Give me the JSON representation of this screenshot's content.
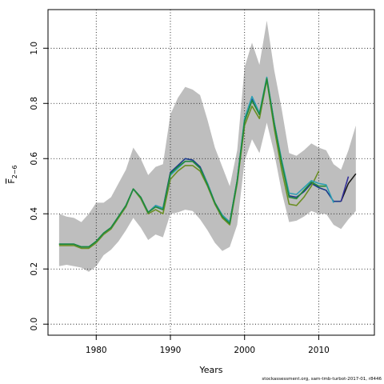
{
  "chart_data": {
    "type": "line",
    "xlabel": "Years",
    "ylabel_main": "F",
    "ylabel_sub": "2−6",
    "xlim": [
      1973.5,
      2017.5
    ],
    "ylim": [
      -0.04,
      1.14
    ],
    "xticks": [
      1980,
      1990,
      2000,
      2010
    ],
    "xtick_labels": [
      "1980",
      "1990",
      "2000",
      "2010"
    ],
    "yticks": [
      0.0,
      0.2,
      0.4,
      0.6,
      0.8,
      1.0
    ],
    "ytick_labels": [
      "0.0",
      "0.2",
      "0.4",
      "0.6",
      "0.8",
      "1.0"
    ],
    "grid": true,
    "band": {
      "color": "#bebebe",
      "x": [
        1975,
        1976,
        1977,
        1978,
        1979,
        1980,
        1981,
        1982,
        1983,
        1984,
        1985,
        1986,
        1987,
        1988,
        1989,
        1990,
        1991,
        1992,
        1993,
        1994,
        1995,
        1996,
        1997,
        1998,
        1999,
        2000,
        2001,
        2002,
        2003,
        2004,
        2005,
        2006,
        2007,
        2008,
        2009,
        2010,
        2011,
        2012,
        2013,
        2014,
        2015
      ],
      "upper": [
        0.4,
        0.39,
        0.385,
        0.37,
        0.4,
        0.44,
        0.44,
        0.46,
        0.51,
        0.56,
        0.64,
        0.6,
        0.54,
        0.57,
        0.58,
        0.76,
        0.82,
        0.86,
        0.85,
        0.83,
        0.74,
        0.64,
        0.57,
        0.5,
        0.63,
        0.93,
        1.02,
        0.94,
        1.1,
        0.92,
        0.78,
        0.62,
        0.61,
        0.63,
        0.655,
        0.64,
        0.63,
        0.58,
        0.56,
        0.63,
        0.72
      ],
      "lower": [
        0.21,
        0.215,
        0.21,
        0.205,
        0.19,
        0.21,
        0.25,
        0.27,
        0.3,
        0.34,
        0.385,
        0.35,
        0.305,
        0.325,
        0.315,
        0.4,
        0.405,
        0.415,
        0.41,
        0.38,
        0.34,
        0.295,
        0.265,
        0.28,
        0.36,
        0.59,
        0.67,
        0.62,
        0.73,
        0.62,
        0.48,
        0.37,
        0.375,
        0.39,
        0.41,
        0.4,
        0.4,
        0.36,
        0.345,
        0.38,
        0.41
      ]
    },
    "series": [
      {
        "color": "#1a3b8a",
        "width": 1.6,
        "x": [
          1975,
          1976,
          1977,
          1978,
          1979,
          1980,
          1981,
          1982,
          1983,
          1984,
          1985,
          1986,
          1987,
          1988,
          1989,
          1990,
          1991,
          1992,
          1993,
          1994,
          1995,
          1996,
          1997,
          1998,
          1999,
          2000,
          2001,
          2002,
          2003,
          2004,
          2005,
          2006,
          2007,
          2008,
          2009,
          2010,
          2011,
          2012,
          2013
        ],
        "values": [
          0.29,
          0.29,
          0.29,
          0.28,
          0.28,
          0.3,
          0.33,
          0.35,
          0.39,
          0.43,
          0.49,
          0.46,
          0.405,
          0.43,
          0.42,
          0.55,
          0.575,
          0.6,
          0.595,
          0.57,
          0.51,
          0.44,
          0.395,
          0.37,
          0.52,
          0.74,
          0.815,
          0.76,
          0.89,
          0.73,
          0.59,
          0.465,
          0.46,
          0.48,
          0.51,
          0.495,
          0.485,
          0.445,
          0.445
        ]
      },
      {
        "color": "#6b8e23",
        "width": 1.6,
        "x": [
          1975,
          1976,
          1977,
          1978,
          1979,
          1980,
          1981,
          1982,
          1983,
          1984,
          1985,
          1986,
          1987,
          1988,
          1989,
          1990,
          1991,
          1992,
          1993,
          1994,
          1995,
          1996,
          1997,
          1998,
          1999,
          2000,
          2001,
          2002,
          2003,
          2004,
          2005,
          2006,
          2007,
          2008,
          2009,
          2010
        ],
        "values": [
          0.285,
          0.285,
          0.285,
          0.275,
          0.275,
          0.295,
          0.325,
          0.345,
          0.385,
          0.425,
          0.49,
          0.455,
          0.4,
          0.415,
          0.4,
          0.525,
          0.555,
          0.575,
          0.575,
          0.555,
          0.5,
          0.435,
          0.385,
          0.36,
          0.51,
          0.72,
          0.79,
          0.745,
          0.885,
          0.71,
          0.56,
          0.435,
          0.43,
          0.46,
          0.5,
          0.555
        ]
      },
      {
        "color": "#2ea0b4",
        "width": 1.6,
        "x": [
          1975,
          1976,
          1977,
          1978,
          1979,
          1980,
          1981,
          1982,
          1983,
          1984,
          1985,
          1986,
          1987,
          1988,
          1989,
          1990,
          1991,
          1992,
          1993,
          1994,
          1995,
          1996,
          1997,
          1998,
          1999,
          2000,
          2001,
          2002,
          2003,
          2004,
          2005,
          2006,
          2007,
          2008,
          2009,
          2010,
          2011,
          2012
        ],
        "values": [
          0.29,
          0.29,
          0.29,
          0.28,
          0.28,
          0.3,
          0.33,
          0.35,
          0.39,
          0.43,
          0.49,
          0.46,
          0.405,
          0.43,
          0.42,
          0.54,
          0.565,
          0.59,
          0.59,
          0.565,
          0.51,
          0.44,
          0.395,
          0.37,
          0.52,
          0.745,
          0.825,
          0.765,
          0.895,
          0.73,
          0.595,
          0.475,
          0.47,
          0.495,
          0.52,
          0.51,
          0.505,
          0.44
        ]
      },
      {
        "color": "#1f8a3a",
        "width": 1.6,
        "x": [
          1975,
          1976,
          1977,
          1978,
          1979,
          1980,
          1981,
          1982,
          1983,
          1984,
          1985,
          1986,
          1987,
          1988,
          1989,
          1990,
          1991,
          1992,
          1993,
          1994,
          1995,
          1996,
          1997,
          1998,
          1999,
          2000,
          2001,
          2002,
          2003,
          2004,
          2005,
          2006,
          2007,
          2008,
          2009,
          2010,
          2011
        ],
        "values": [
          0.29,
          0.29,
          0.29,
          0.28,
          0.28,
          0.3,
          0.33,
          0.35,
          0.39,
          0.43,
          0.49,
          0.46,
          0.405,
          0.425,
          0.415,
          0.545,
          0.57,
          0.59,
          0.59,
          0.565,
          0.505,
          0.44,
          0.39,
          0.365,
          0.52,
          0.735,
          0.81,
          0.76,
          0.89,
          0.725,
          0.585,
          0.46,
          0.455,
          0.485,
          0.515,
          0.5,
          0.5
        ]
      },
      {
        "color": "#8a8a8a",
        "width": 1.6,
        "x": [
          2013,
          2014,
          2015
        ],
        "values": [
          0.445,
          0.51,
          0.545
        ]
      },
      {
        "color": "#111111",
        "width": 1.3,
        "x": [
          2013,
          2014,
          2015
        ],
        "values": [
          0.445,
          0.51,
          0.545
        ]
      },
      {
        "color": "#33309a",
        "width": 1.6,
        "x": [
          2013,
          2014
        ],
        "values": [
          0.445,
          0.535
        ]
      }
    ]
  },
  "footer": {
    "credit": "stockassessment.org, sam-tmb-turbot-2017-01, r8446"
  }
}
